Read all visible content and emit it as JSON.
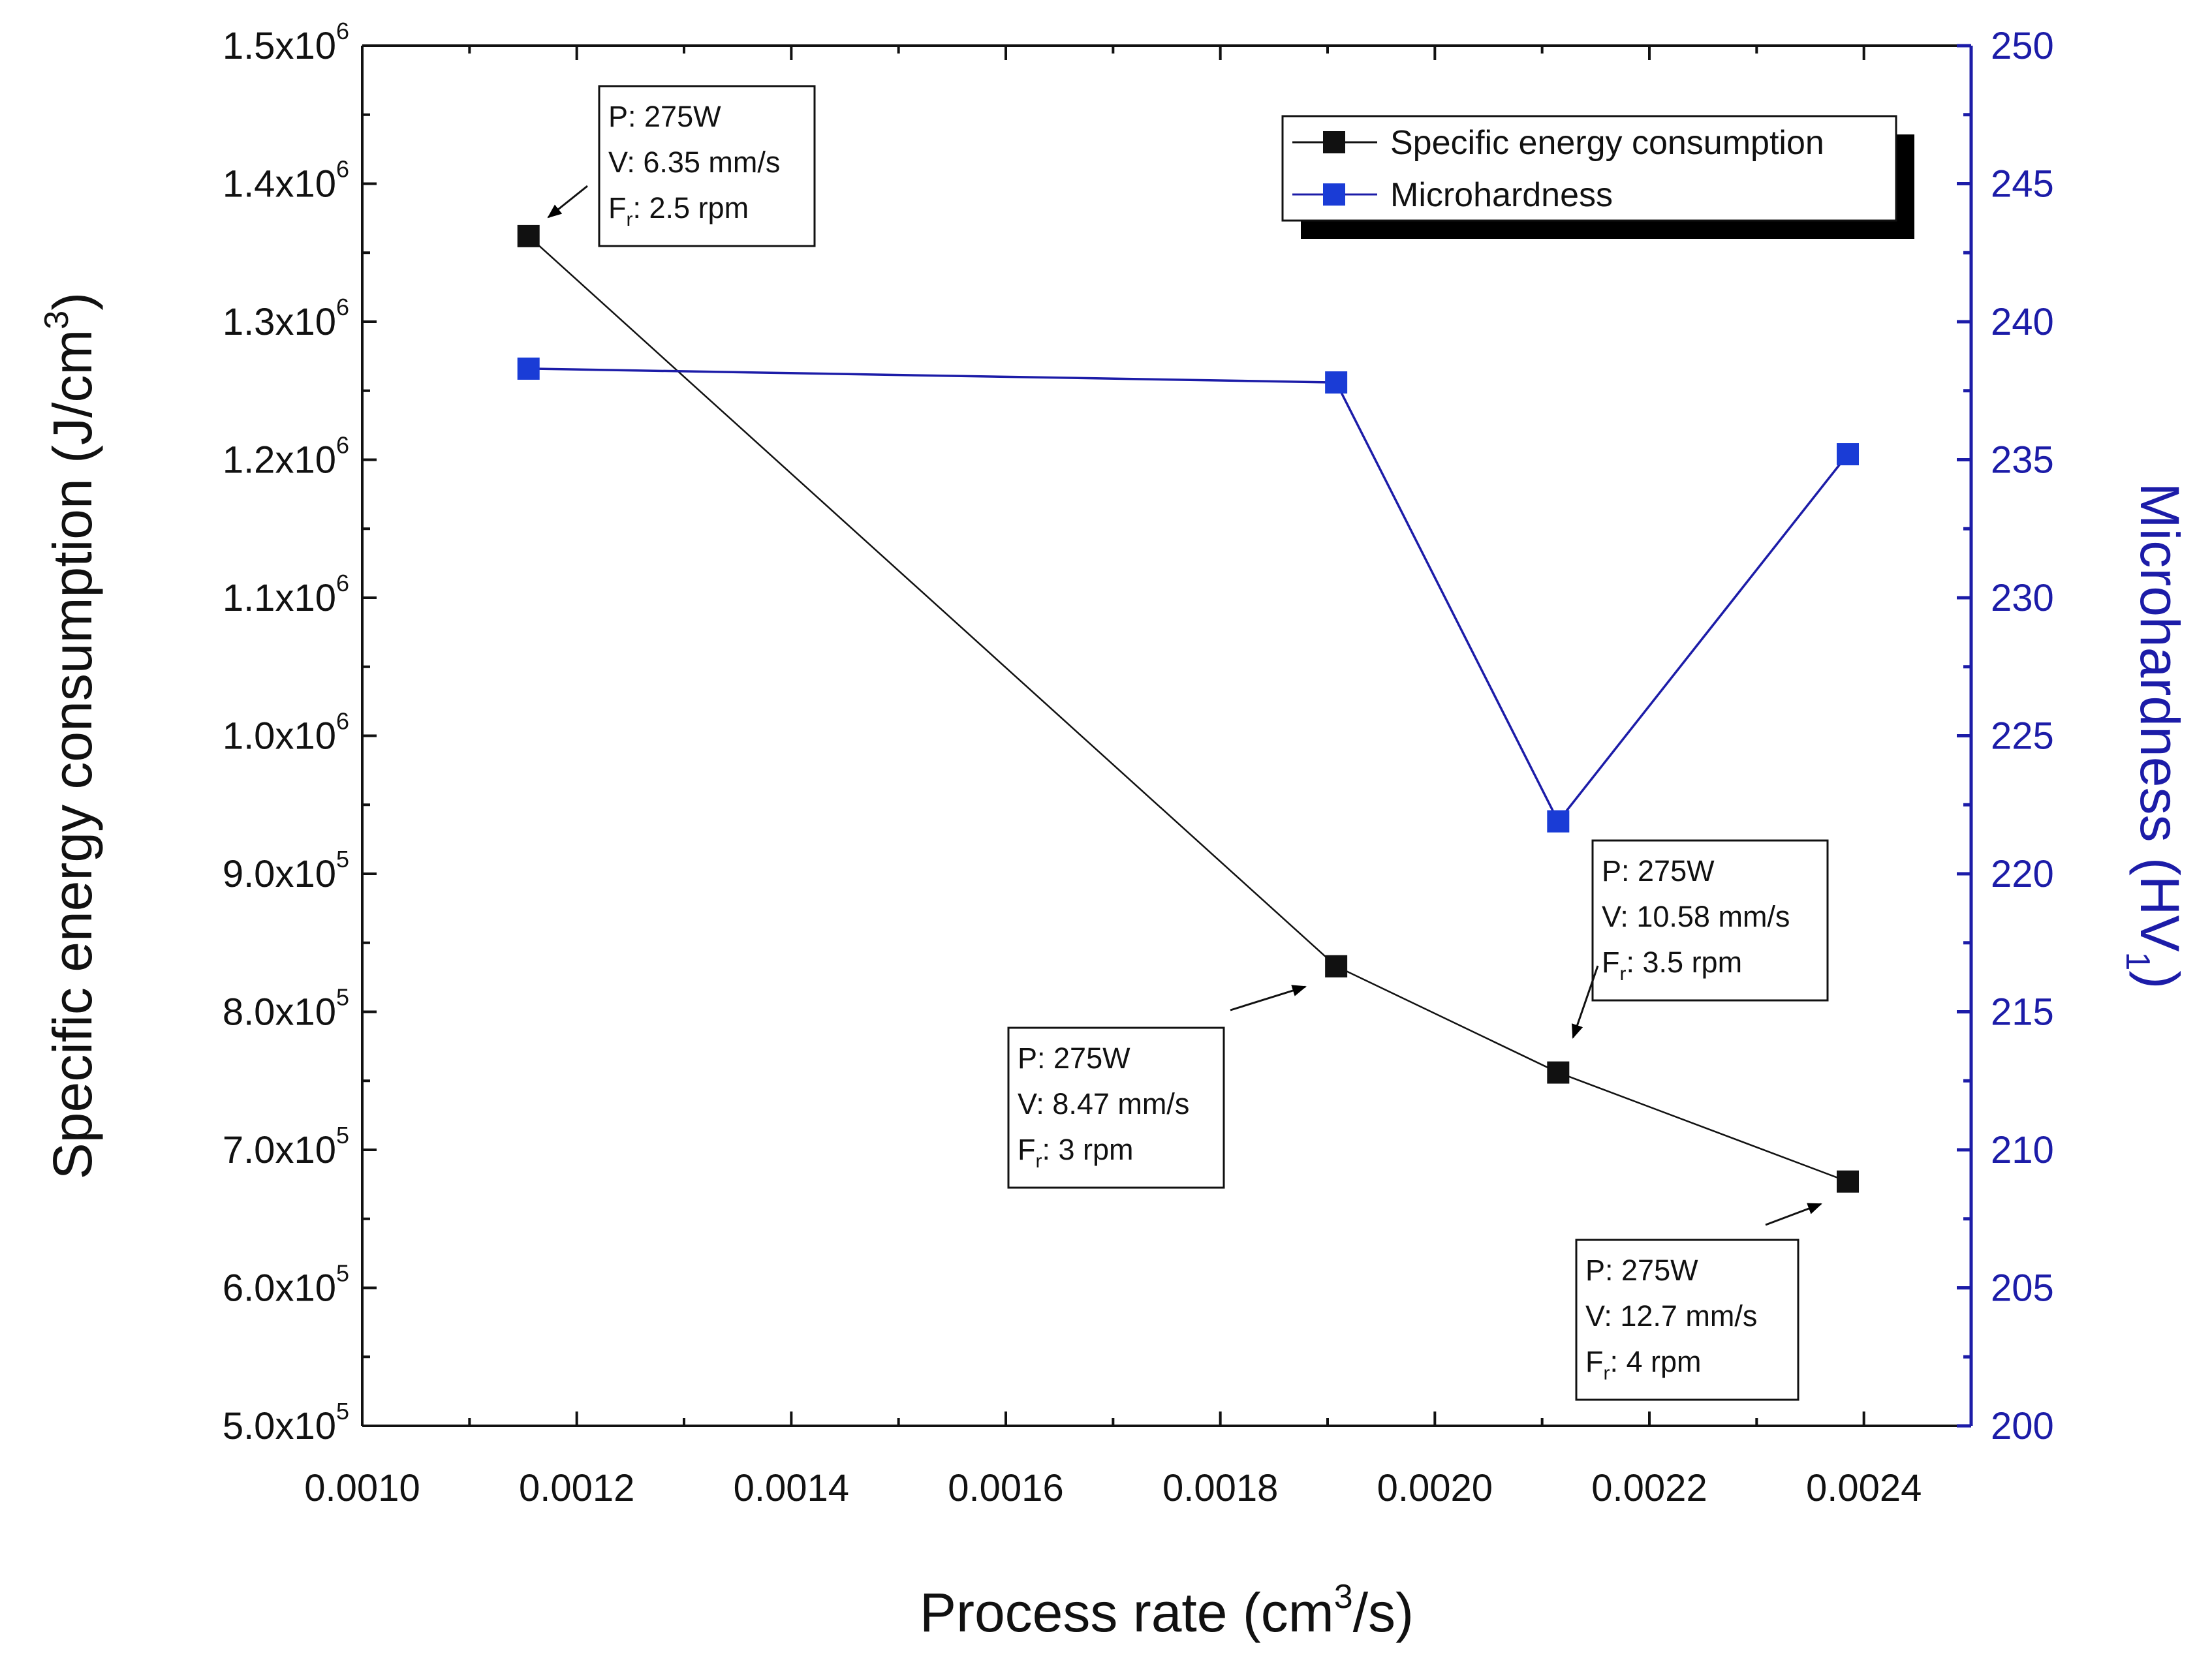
{
  "colors": {
    "left_axis": "#111111",
    "right_axis": "#1c1ca8",
    "sec_series": "#111111",
    "micro_series": "#1a3cd6",
    "micro_line": "#1c1ca8"
  },
  "chart_data": {
    "type": "line",
    "dual_axis": true,
    "x": [
      0.001155,
      0.001908,
      0.002115,
      0.002385
    ],
    "xlabel": "Process rate (cm3/s)",
    "xlim": [
      0.001,
      0.0025
    ],
    "xticks": [
      "0.0010",
      "0.0012",
      "0.0014",
      "0.0016",
      "0.0018",
      "0.0020",
      "0.0022",
      "0.0024"
    ],
    "ylabel": "Specific energy consumption (J/cm3)",
    "ylim": [
      500000,
      1500000
    ],
    "yticks": [
      {
        "mantissa": "5.0x10",
        "exp": "5"
      },
      {
        "mantissa": "6.0x10",
        "exp": "5"
      },
      {
        "mantissa": "7.0x10",
        "exp": "5"
      },
      {
        "mantissa": "8.0x10",
        "exp": "5"
      },
      {
        "mantissa": "9.0x10",
        "exp": "5"
      },
      {
        "mantissa": "1.0x10",
        "exp": "6"
      },
      {
        "mantissa": "1.1x10",
        "exp": "6"
      },
      {
        "mantissa": "1.2x10",
        "exp": "6"
      },
      {
        "mantissa": "1.3x10",
        "exp": "6"
      },
      {
        "mantissa": "1.4x10",
        "exp": "6"
      },
      {
        "mantissa": "1.5x10",
        "exp": "6"
      }
    ],
    "y2label": "Microhardness (HV1)",
    "y2lim": [
      200,
      250
    ],
    "y2ticks": [
      "200",
      "205",
      "210",
      "215",
      "220",
      "225",
      "230",
      "235",
      "240",
      "245",
      "250"
    ],
    "series": [
      {
        "name": "Specific energy consumption",
        "axis": "left",
        "values": [
          1362000,
          833000,
          756000,
          677000
        ]
      },
      {
        "name": "Microhardness",
        "axis": "right",
        "values": [
          238.3,
          237.8,
          221.9,
          235.2
        ]
      }
    ],
    "annotations": [
      {
        "lines": [
          "P: 275W",
          "V: 6.35 mm/s",
          "Fr: 2.5 rpm"
        ],
        "point_index": 0
      },
      {
        "lines": [
          "P: 275W",
          "V: 8.47 mm/s",
          "Fr: 3 rpm"
        ],
        "point_index": 1
      },
      {
        "lines": [
          "P: 275W",
          "V: 10.58 mm/s",
          "Fr: 3.5 rpm"
        ],
        "point_index": 2
      },
      {
        "lines": [
          "P: 275W",
          "V: 12.7 mm/s",
          "Fr: 4 rpm"
        ],
        "point_index": 3
      }
    ],
    "legend": {
      "position": "top-right",
      "entries": [
        "Specific energy consumption",
        "Microhardness"
      ]
    }
  }
}
